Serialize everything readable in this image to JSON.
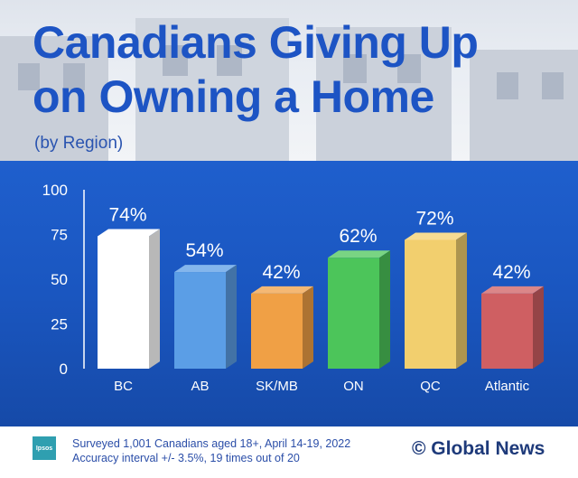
{
  "header": {
    "title_line1": "Canadians Giving Up",
    "title_line2": "on Owning a Home",
    "subtitle": "(by Region)"
  },
  "footer": {
    "logo_text": "Ipsos",
    "note_line1": "Surveyed 1,001 Canadians aged 18+, April 14-19, 2022",
    "note_line2": "Accuracy interval +/- 3.5%, 19 times out of 20",
    "brand": "© Global News"
  },
  "chart_data": {
    "type": "bar",
    "title": "Canadians Giving Up on Owning a Home",
    "subtitle": "(by Region)",
    "categories": [
      "BC",
      "AB",
      "SK/MB",
      "ON",
      "QC",
      "Atlantic"
    ],
    "values": [
      74,
      54,
      42,
      62,
      72,
      42
    ],
    "value_labels": [
      "74%",
      "54%",
      "42%",
      "62%",
      "72%",
      "42%"
    ],
    "bar_colors": [
      "#ffffff",
      "#5b9ee6",
      "#f0a045",
      "#4cc55a",
      "#f2cf6e",
      "#cf5f62"
    ],
    "ylim": [
      0,
      100
    ],
    "yticks": [
      0,
      25,
      50,
      75,
      100
    ],
    "grid": false,
    "legend": false
  }
}
